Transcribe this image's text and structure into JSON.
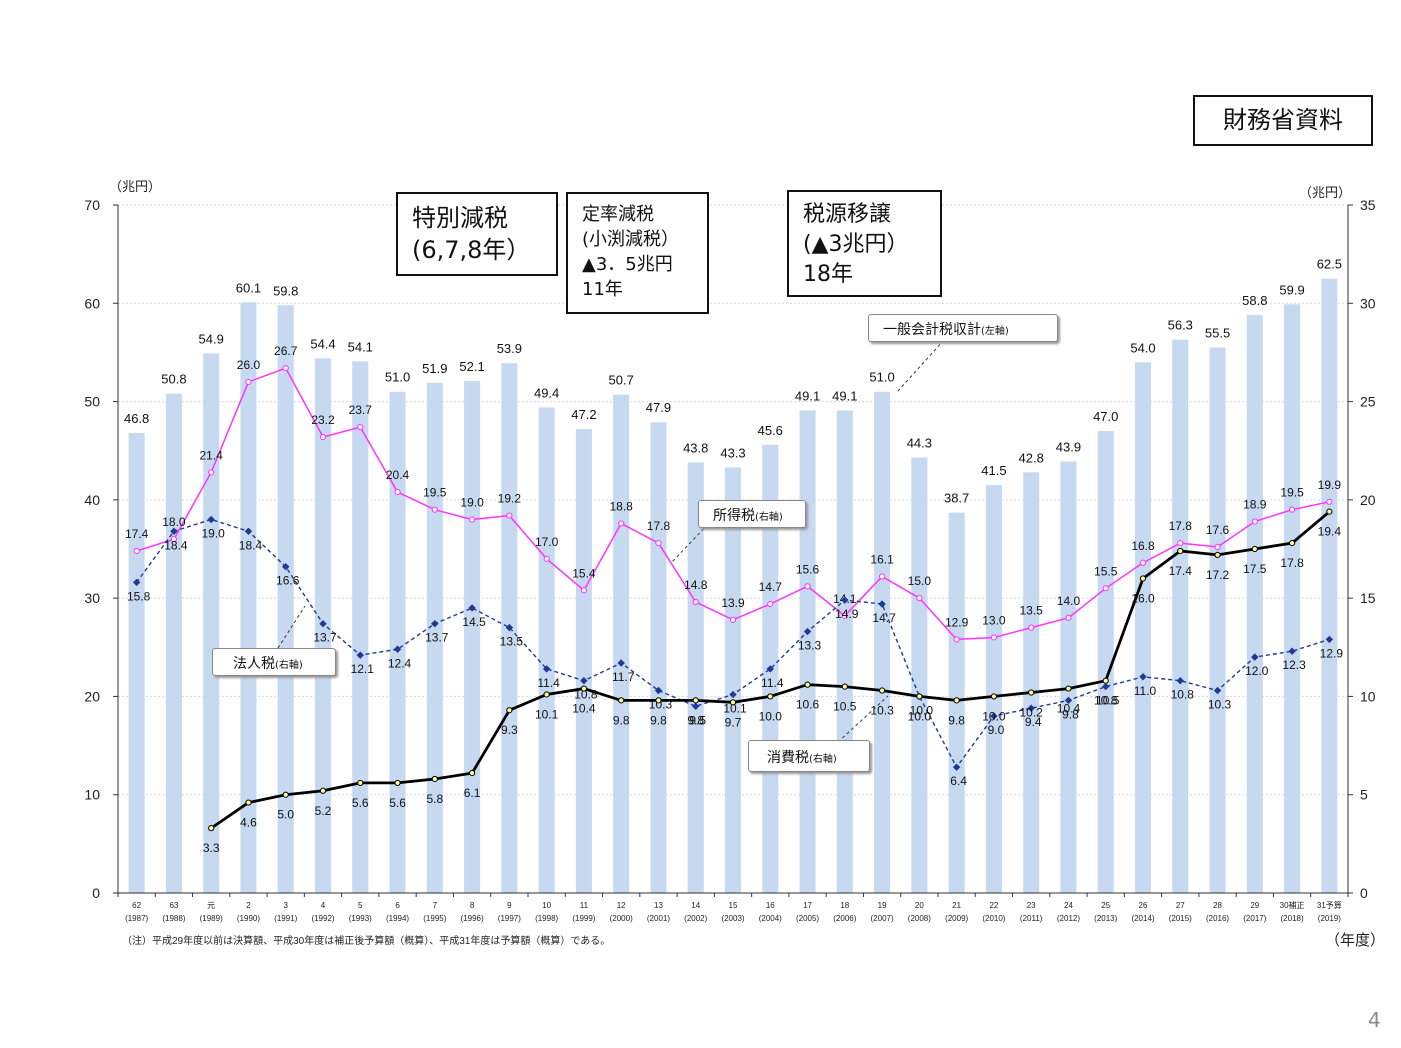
{
  "source_label": "財務省資料",
  "annotations": [
    {
      "lines": [
        "特別減税",
        "(6,7,8年）"
      ]
    },
    {
      "lines": [
        "定率減税",
        "(小渕減税）",
        "▲3．5兆円",
        "11年"
      ]
    },
    {
      "lines": [
        "税源移譲",
        "(▲3兆円）",
        "18年"
      ]
    }
  ],
  "series_labels": {
    "total": {
      "name": "一般会計税収計",
      "axis": "(左軸)"
    },
    "income": {
      "name": "所得税",
      "axis": "(右軸)"
    },
    "corporate": {
      "name": "法人税",
      "axis": "(右軸)"
    },
    "consumption": {
      "name": "消費税",
      "axis": "(右軸)"
    }
  },
  "page_number": "4",
  "colors": {
    "bar_fill": "#c6d9f1",
    "income": "#ff33ff",
    "corporate": "#1f3a93",
    "consumption": "#000000",
    "axis": "#333333",
    "grid": "#d9d9d9"
  },
  "chart_data": {
    "type": "bar+line",
    "left_axis": {
      "unit_label": "（兆円）",
      "range": [
        0,
        70
      ],
      "ticks": [
        0,
        10,
        20,
        30,
        40,
        50,
        60,
        70
      ]
    },
    "right_axis": {
      "unit_label": "（兆円）",
      "range": [
        0,
        35
      ],
      "ticks": [
        0,
        5,
        10,
        15,
        20,
        25,
        30,
        35
      ]
    },
    "x_axis_unit": "（年度）",
    "note": "（注）平成29年度以前は決算額、平成30年度は補正後予算額（概算）、平成31年度は予算額（概算）である。",
    "categories": [
      "62",
      "63",
      "元",
      "2",
      "3",
      "4",
      "5",
      "6",
      "7",
      "8",
      "9",
      "10",
      "11",
      "12",
      "13",
      "14",
      "15",
      "16",
      "17",
      "18",
      "19",
      "20",
      "21",
      "22",
      "23",
      "24",
      "25",
      "26",
      "27",
      "28",
      "29",
      "30補正",
      "31予算"
    ],
    "category_years": [
      "(1987)",
      "(1988)",
      "(1989)",
      "(1990)",
      "(1991)",
      "(1992)",
      "(1993)",
      "(1994)",
      "(1995)",
      "(1996)",
      "(1997)",
      "(1998)",
      "(1999)",
      "(2000)",
      "(2001)",
      "(2002)",
      "(2003)",
      "(2004)",
      "(2005)",
      "(2006)",
      "(2007)",
      "(2008)",
      "(2009)",
      "(2010)",
      "(2011)",
      "(2012)",
      "(2013)",
      "(2014)",
      "(2015)",
      "(2016)",
      "(2017)",
      "(2018)",
      "(2019)"
    ],
    "total_tax_revenue_left": [
      46.8,
      50.8,
      54.9,
      60.1,
      59.8,
      54.4,
      54.1,
      51.0,
      51.9,
      52.1,
      53.9,
      49.4,
      47.2,
      50.7,
      47.9,
      43.8,
      43.3,
      45.6,
      49.1,
      49.1,
      51.0,
      44.3,
      38.7,
      41.5,
      42.8,
      43.9,
      47.0,
      54.0,
      56.3,
      55.5,
      58.8,
      59.9,
      62.5
    ],
    "income_tax_right": [
      17.4,
      18.0,
      21.4,
      26.0,
      26.7,
      23.2,
      23.7,
      20.4,
      19.5,
      19.0,
      19.2,
      17.0,
      15.4,
      18.8,
      17.8,
      14.8,
      13.9,
      14.7,
      15.6,
      14.1,
      16.1,
      15.0,
      12.9,
      13.0,
      13.5,
      14.0,
      15.5,
      16.8,
      17.8,
      17.6,
      18.9,
      19.5,
      19.9
    ],
    "corporate_tax_right": [
      15.8,
      18.4,
      19.0,
      18.4,
      16.6,
      13.7,
      12.1,
      12.4,
      13.7,
      14.5,
      13.5,
      11.4,
      10.8,
      11.7,
      10.3,
      9.5,
      10.1,
      11.4,
      13.3,
      14.9,
      14.7,
      10.0,
      6.4,
      9.0,
      9.4,
      9.8,
      10.5,
      11.0,
      10.8,
      10.3,
      12.0,
      12.3,
      12.9
    ],
    "consumption_tax_right": [
      null,
      null,
      3.3,
      4.6,
      5.0,
      5.2,
      5.6,
      5.6,
      5.8,
      6.1,
      9.3,
      10.1,
      10.4,
      9.8,
      9.8,
      9.8,
      9.7,
      10.0,
      10.6,
      10.5,
      10.3,
      10.0,
      9.8,
      10.0,
      10.2,
      10.4,
      10.8,
      16.0,
      17.4,
      17.2,
      17.5,
      17.8,
      19.4
    ]
  }
}
